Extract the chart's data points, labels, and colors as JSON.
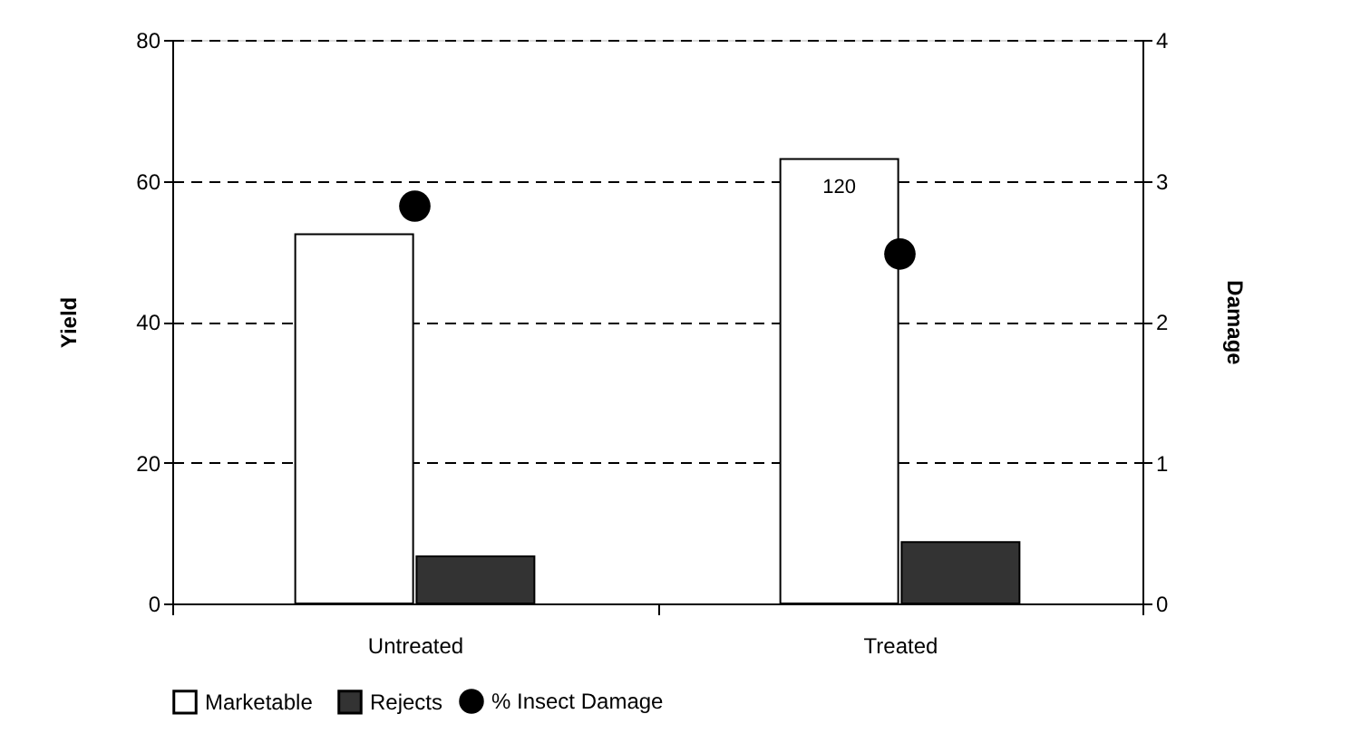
{
  "chart_data": {
    "type": "bar",
    "ylabel": "Yield",
    "y2label": "Damage",
    "categories": [
      "Untreated",
      "Treated"
    ],
    "series": [
      {
        "name": "Marketable",
        "color": "#ffffff",
        "values": [
          52.4,
          63.1
        ]
      },
      {
        "name": "Rejects",
        "color": "#333333",
        "values": [
          6.7,
          8.7
        ]
      },
      {
        "name": "% Insect Damage",
        "type": "scatter",
        "axis": "y2",
        "color": "#000000",
        "marker": "circle",
        "values": [
          2.82,
          2.48
        ]
      }
    ],
    "ylim": [
      0,
      80
    ],
    "yticks": [
      0,
      20,
      40,
      60,
      80
    ],
    "y2lim": [
      0,
      4
    ],
    "y2ticks": [
      0,
      1,
      2,
      3,
      4
    ],
    "grid": "y",
    "legend": "bottom",
    "annotations": [
      {
        "text": "120",
        "x": "Treated",
        "y": 59
      }
    ]
  }
}
